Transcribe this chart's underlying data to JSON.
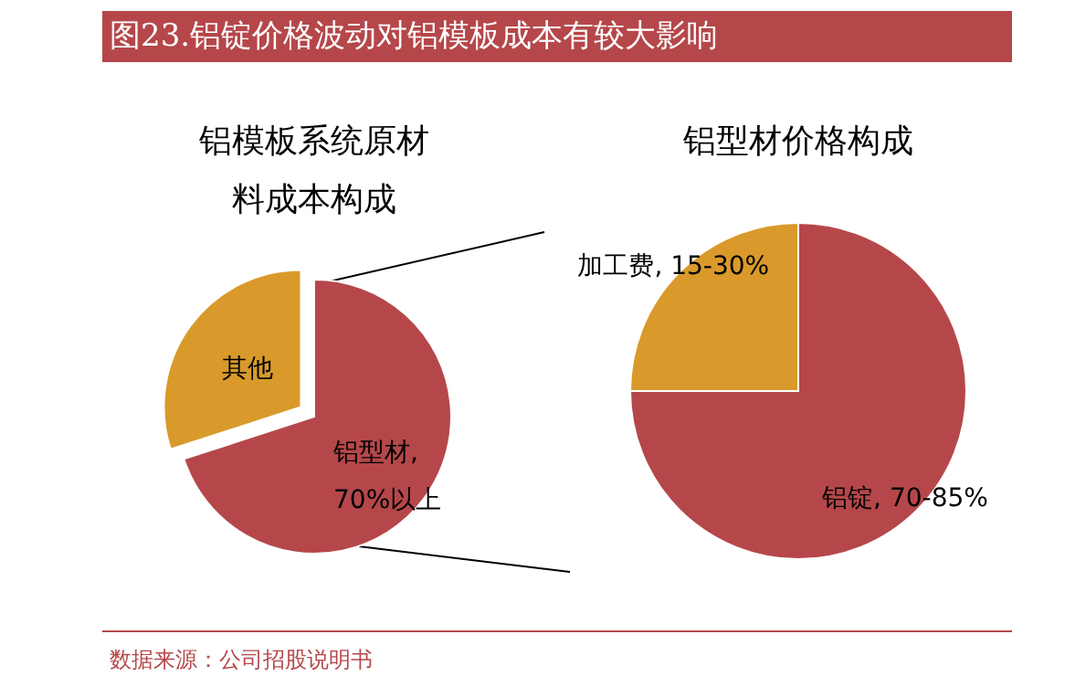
{
  "chart_data": [
    {
      "type": "other",
      "title": "图23.铝锭价格波动对铝模板成本有较大影响",
      "annotations": [
        "数据来源：公司招股说明书"
      ]
    },
    {
      "type": "pie",
      "title": "铝模板系统原材料成本构成",
      "categories": [
        "其他",
        "铝型材, 70%以上"
      ],
      "values": [
        30,
        70
      ],
      "colors": [
        "#d99a2b",
        "#b5474a"
      ]
    },
    {
      "type": "pie",
      "title": "铝型材价格构成",
      "categories": [
        "加工费, 15-30%",
        "铝锭, 70-85%"
      ],
      "values": [
        25,
        75
      ],
      "colors": [
        "#d99a2b",
        "#b5474a"
      ]
    }
  ]
}
